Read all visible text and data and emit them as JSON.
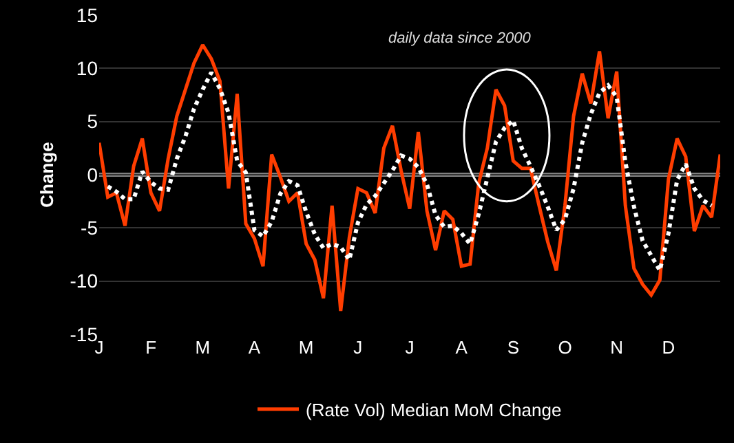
{
  "chart_data": {
    "type": "line",
    "ylabel": "Change",
    "annotations": [
      "daily data since 2000"
    ],
    "categories": [
      "J",
      null,
      null,
      null,
      null,
      null,
      "F",
      null,
      null,
      null,
      null,
      null,
      "M",
      null,
      null,
      null,
      null,
      null,
      "A",
      null,
      null,
      null,
      null,
      null,
      "M",
      null,
      null,
      null,
      null,
      null,
      "J",
      null,
      null,
      null,
      null,
      null,
      "J",
      null,
      null,
      null,
      null,
      null,
      "A",
      null,
      null,
      null,
      null,
      null,
      "S",
      null,
      null,
      null,
      null,
      null,
      "O",
      null,
      null,
      null,
      null,
      null,
      "N",
      null,
      null,
      null,
      null,
      null,
      "D",
      null,
      null,
      null,
      null,
      null,
      null
    ],
    "ylim": [
      -15,
      15
    ],
    "yticks": [
      -15,
      -10,
      -5,
      0,
      5,
      10,
      15
    ],
    "grid": "y",
    "legend": "bottom",
    "ref_lines": [
      {
        "axis": "y",
        "value": 0,
        "color": "#808080"
      }
    ],
    "series": [
      {
        "name": "(Rate Vol) Median MoM Change",
        "color": "#ff3d00",
        "line_style": "solid",
        "values": [
          3.0,
          -2.1,
          -1.7,
          -4.8,
          0.8,
          3.4,
          -1.7,
          -3.4,
          1.5,
          5.5,
          8.0,
          10.5,
          12.2,
          10.9,
          8.8,
          -1.3,
          7.6,
          -4.6,
          -6.0,
          -8.6,
          1.9,
          -0.2,
          -2.5,
          -1.7,
          -6.5,
          -8.0,
          -11.6,
          -2.9,
          -12.8,
          -5.9,
          -1.3,
          -1.7,
          -3.6,
          2.5,
          4.6,
          0.4,
          -3.2,
          4.0,
          -3.4,
          -7.1,
          -3.4,
          -4.2,
          -8.6,
          -8.4,
          -0.8,
          2.5,
          8.0,
          6.5,
          1.3,
          0.6,
          0.6,
          -2.9,
          -6.3,
          -9.0,
          -2.9,
          5.5,
          9.5,
          6.7,
          11.6,
          5.3,
          9.7,
          -2.9,
          -8.8,
          -10.3,
          -11.3,
          -9.9,
          -0.4,
          3.4,
          1.7,
          -5.3,
          -2.9,
          -4.0,
          1.9
        ]
      },
      {
        "color": "#ffffff",
        "line_style": "dotted",
        "values": [
          null,
          -1.1,
          -1.6,
          -2.3,
          -2.3,
          0.3,
          -0.7,
          -1.3,
          -1.4,
          1.5,
          3.6,
          6.2,
          8.0,
          9.6,
          8.1,
          5.8,
          1.3,
          0.2,
          -5.2,
          -5.8,
          -4.4,
          -1.8,
          -0.6,
          -1.0,
          -3.5,
          -5.6,
          -6.9,
          -6.5,
          -6.8,
          -8.0,
          -4.5,
          -2.8,
          -2.0,
          -0.8,
          0.4,
          1.8,
          1.5,
          0.7,
          -0.9,
          -3.8,
          -4.9,
          -4.8,
          -5.5,
          -6.5,
          -3.7,
          -0.3,
          3.1,
          4.4,
          5.1,
          2.5,
          0.8,
          -1.0,
          -3.0,
          -5.2,
          -4.2,
          -1.3,
          3.0,
          5.7,
          7.7,
          8.4,
          7.3,
          1.2,
          -3.0,
          -6.2,
          -7.6,
          -9.0,
          -5.5,
          -0.5,
          1.0,
          -1.3,
          -2.4,
          -2.9,
          null
        ]
      }
    ]
  }
}
